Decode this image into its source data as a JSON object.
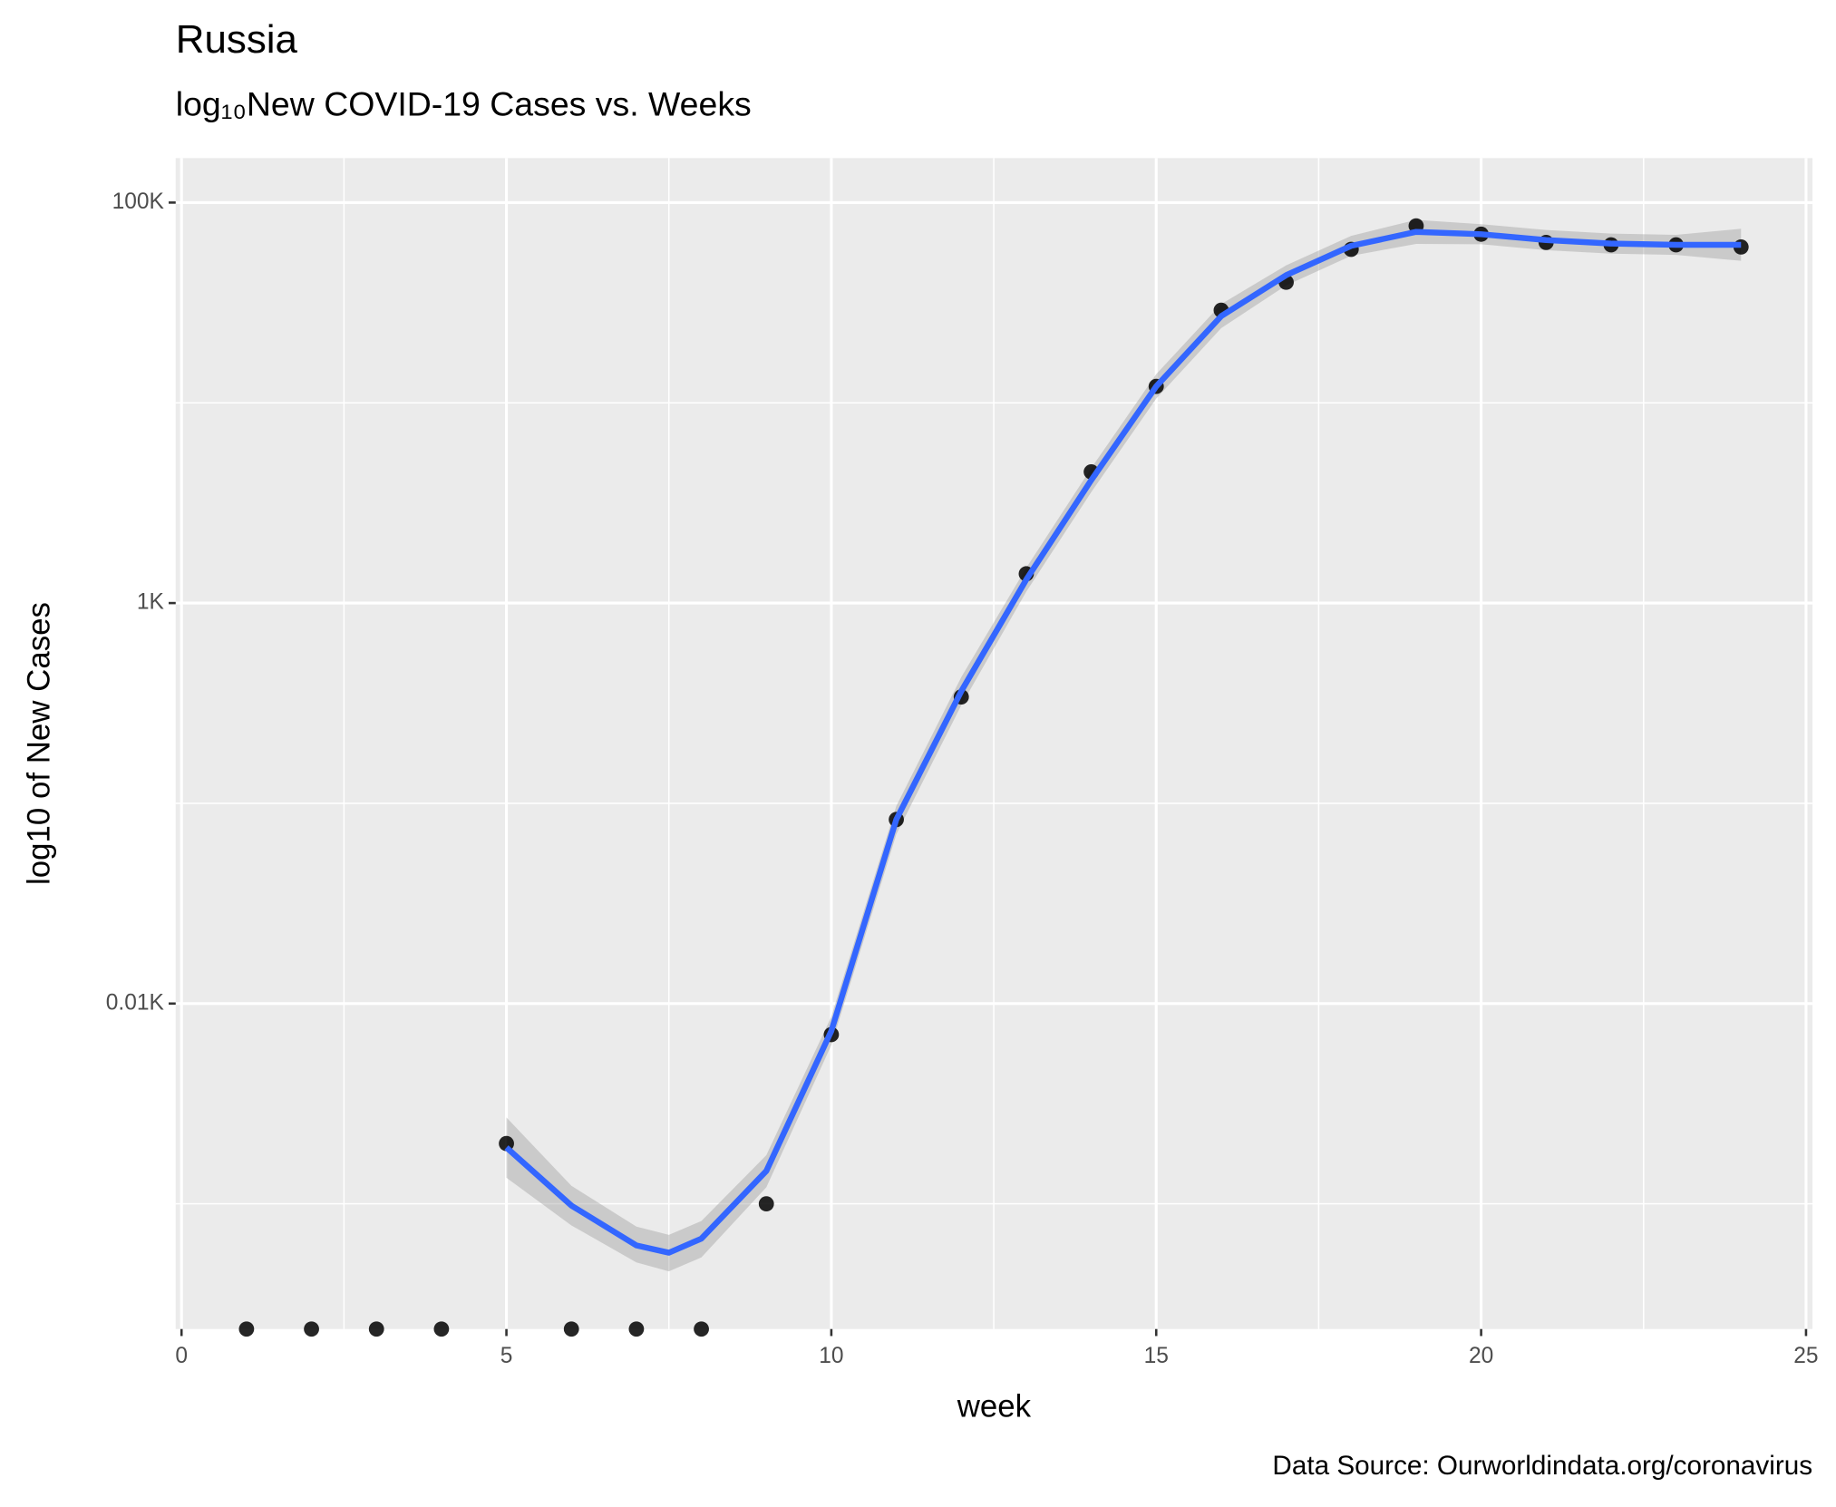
{
  "chart_data": {
    "type": "scatter-smooth",
    "title": "Russia",
    "subtitle": "log₁₀New COVID-19 Cases vs. Weeks",
    "x_label": "week",
    "y_label": "log10 of New Cases",
    "caption": "Data Source: Ourworldindata.org/coronavirus",
    "y_scale": "log",
    "grid": true,
    "xlim": [
      -0.09,
      25.1
    ],
    "xticks": [
      0,
      5,
      10,
      15,
      20,
      25
    ],
    "xminor": [
      2.5,
      7.5,
      12.5,
      17.5,
      22.5
    ],
    "ylim": [
      0.237,
      166800
    ],
    "yticks": [
      {
        "value": 10,
        "label": "0.01K"
      },
      {
        "value": 1000,
        "label": "1K"
      },
      {
        "value": 100000,
        "label": "100K"
      }
    ],
    "yminor": [
      1,
      100,
      10000
    ],
    "points": {
      "color": "#000000",
      "x": [
        1,
        2,
        3,
        4,
        5,
        6,
        7,
        8,
        9,
        10,
        11,
        12,
        13,
        14,
        15,
        16,
        17,
        18,
        19,
        20,
        21,
        22,
        23,
        24
      ],
      "values": [
        0,
        0,
        0,
        0,
        2,
        0,
        0,
        0,
        1,
        7,
        83,
        340,
        1400,
        4520,
        12080,
        29000,
        40000,
        58400,
        76500,
        69500,
        63200,
        61500,
        61500,
        60000
      ]
    },
    "smooth": {
      "color": "#3366FF",
      "ribbon_color": "#999999",
      "x": [
        5,
        6,
        7,
        7.5,
        8,
        9,
        10,
        11,
        12,
        13,
        14,
        15,
        16,
        17,
        18,
        19,
        20,
        21,
        22,
        23,
        24
      ],
      "values": [
        1.91,
        0.98,
        0.62,
        0.57,
        0.67,
        1.46,
        7.3,
        83,
        363,
        1310,
        4110,
        12080,
        27100,
        43400,
        60800,
        71400,
        69500,
        65000,
        62400,
        61500,
        61500
      ],
      "lower": [
        1.35,
        0.78,
        0.51,
        0.46,
        0.54,
        1.21,
        6.2,
        70,
        309,
        1140,
        3580,
        10500,
        23600,
        38600,
        54200,
        62200,
        61900,
        57900,
        55600,
        54800,
        51200
      ],
      "upper": [
        2.7,
        1.23,
        0.77,
        0.7,
        0.82,
        1.75,
        8.6,
        97,
        427,
        1500,
        4720,
        13900,
        31100,
        48600,
        68200,
        82000,
        78000,
        73000,
        70000,
        69000,
        74000
      ]
    }
  }
}
